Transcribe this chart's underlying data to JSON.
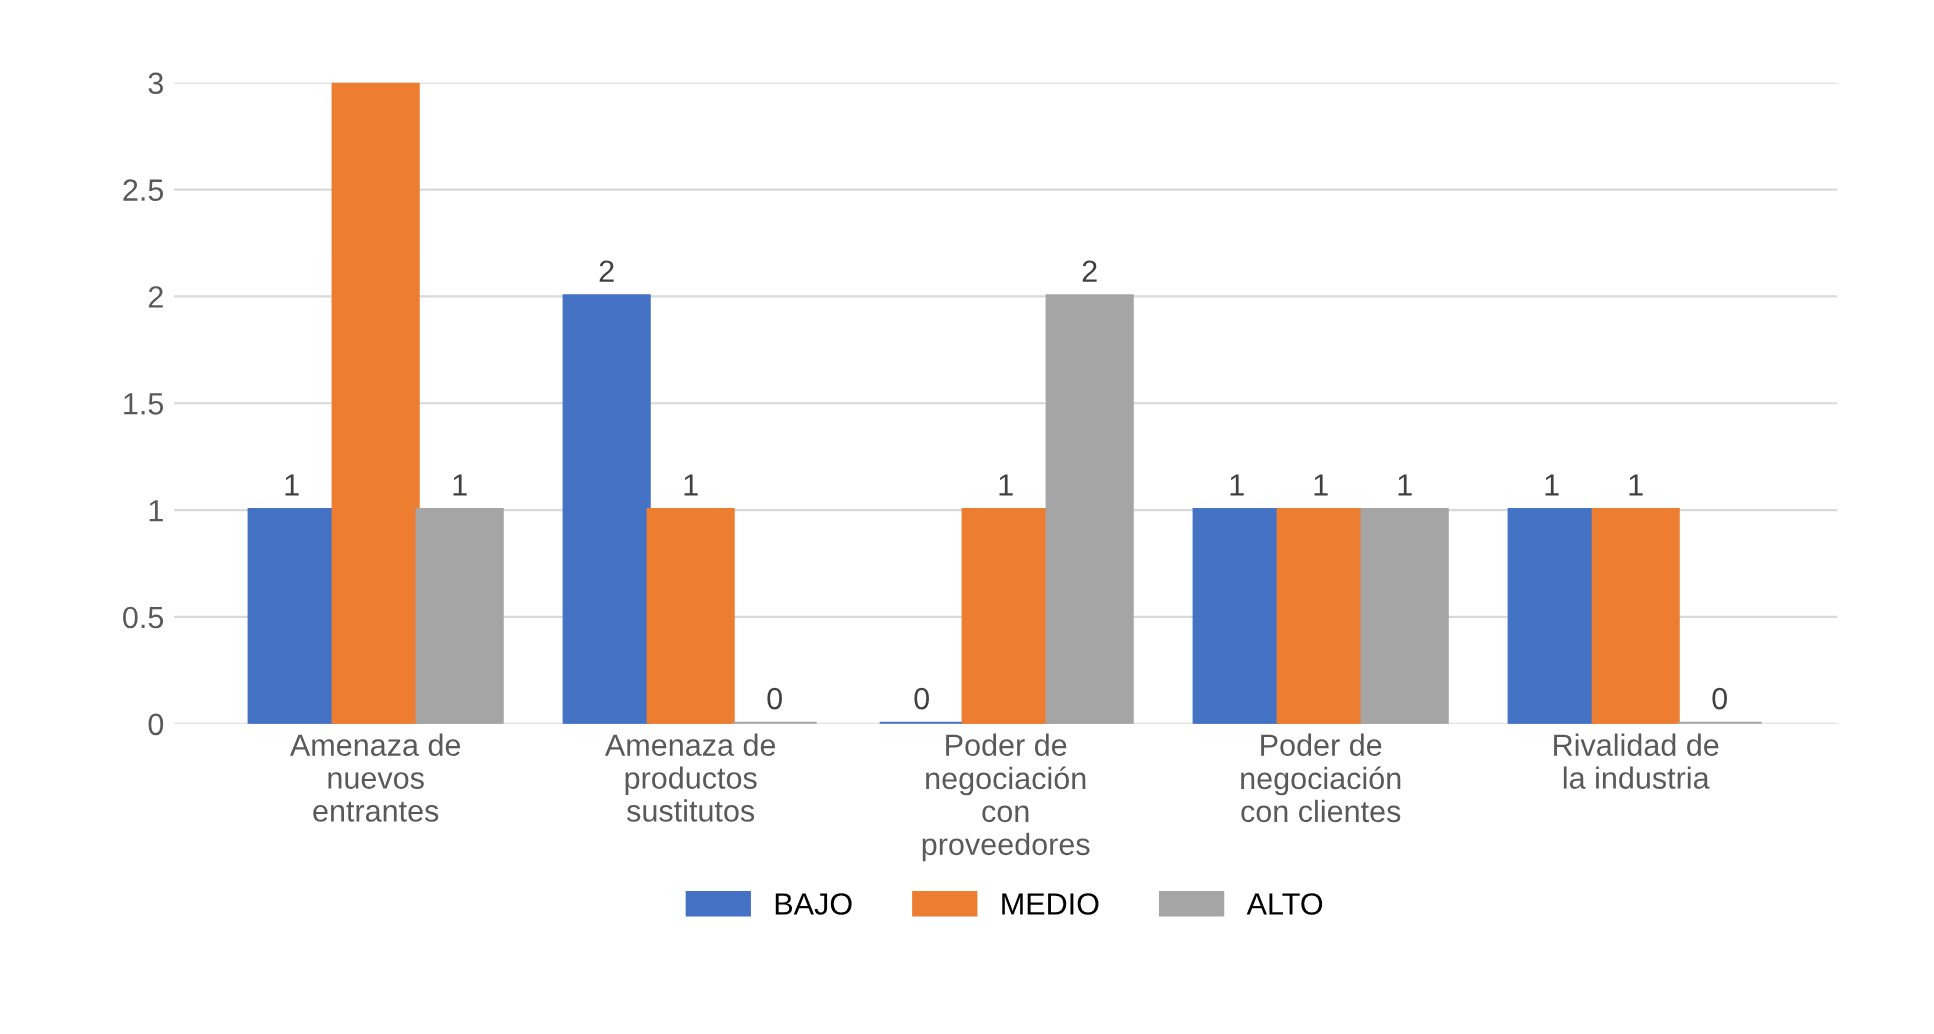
{
  "chart_data": {
    "type": "bar",
    "categories": [
      "Amenaza de nuevos entrantes",
      "Amenaza de productos sustitutos",
      "Poder de negociación con proveedores",
      "Poder de negociación con clientes",
      "Rivalidad de la industria"
    ],
    "series": [
      {
        "name": "BAJO",
        "color": "#4472c4",
        "values": [
          1,
          2,
          0,
          1,
          1
        ],
        "value_labels": [
          "1",
          "2",
          "0",
          "1",
          "1"
        ]
      },
      {
        "name": "MEDIO",
        "color": "#ed7d31",
        "values": [
          3,
          1,
          1,
          1,
          1
        ],
        "value_labels": [
          null,
          "1",
          "1",
          "1",
          "1"
        ]
      },
      {
        "name": "ALTO",
        "color": "#a5a5a5",
        "values": [
          1,
          0,
          2,
          1,
          0
        ],
        "value_labels": [
          "1",
          "0",
          "2",
          "1",
          "0"
        ]
      }
    ],
    "ylim": [
      0,
      3
    ],
    "yticks": [
      0,
      0.5,
      1,
      1.5,
      2,
      2.5,
      3
    ],
    "grid": "y",
    "legend": "bottom"
  }
}
